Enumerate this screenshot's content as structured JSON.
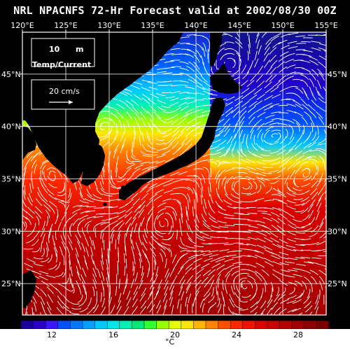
{
  "title": "NRL NPACNFS 72-Hr Forecast valid at 2002/08/30 00Z",
  "panel": {
    "depth_value": "10",
    "depth_unit": "m",
    "field_label": "Temp/Current",
    "reference_vector_label": "20 cm/s"
  },
  "axes": {
    "lon_ticks": [
      "120°E",
      "125°E",
      "130°E",
      "135°E",
      "140°E",
      "145°E",
      "150°E",
      "155°E"
    ],
    "lat_ticks": [
      "45°N",
      "40°N",
      "35°N",
      "30°N",
      "25°N"
    ],
    "lon_range": [
      120,
      155
    ],
    "lat_range": [
      22,
      49
    ]
  },
  "colorbar": {
    "unit": "°C",
    "tick_labels": [
      "12",
      "16",
      "20",
      "24",
      "28"
    ],
    "range": [
      10,
      30
    ],
    "colors": [
      "#1c00a0",
      "#2800c8",
      "#3c14ff",
      "#0050ff",
      "#0078ff",
      "#00a0ff",
      "#00c8ff",
      "#00e6e6",
      "#00f0b4",
      "#00e678",
      "#32ff32",
      "#96ff00",
      "#e6ff00",
      "#ffe600",
      "#ffb400",
      "#ff8200",
      "#ff5000",
      "#ff2800",
      "#f01400",
      "#dc0000",
      "#c80000",
      "#b40000",
      "#a00000",
      "#8c0000",
      "#780000"
    ]
  },
  "colors": {
    "background": "#000000",
    "land": "#000000",
    "grid": "#ffffff",
    "current_vectors": "#ffffff"
  }
}
